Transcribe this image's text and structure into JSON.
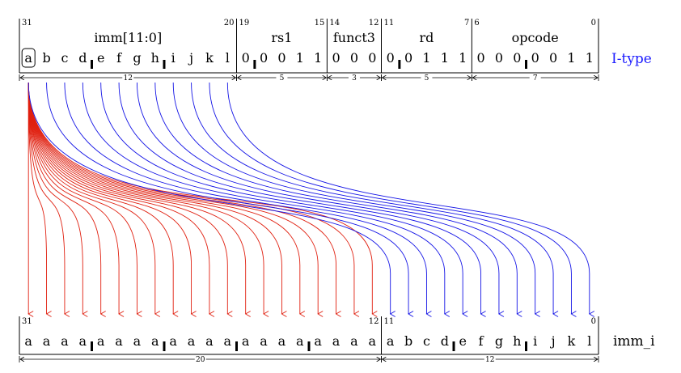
{
  "top": {
    "type_label": "I-type",
    "type_color": "#1a1aff",
    "fields": [
      {
        "name": "imm[11:0]",
        "hi": "31",
        "lo": "20",
        "width": "12",
        "bits": [
          "a",
          "b",
          "c",
          "d",
          "e",
          "f",
          "g",
          "h",
          "i",
          "j",
          "k",
          "l"
        ]
      },
      {
        "name": "rs1",
        "hi": "19",
        "lo": "15",
        "width": "5",
        "bits": [
          "0",
          "0",
          "0",
          "1",
          "1"
        ]
      },
      {
        "name": "funct3",
        "hi": "14",
        "lo": "12",
        "width": "3",
        "bits": [
          "0",
          "0",
          "0"
        ]
      },
      {
        "name": "rd",
        "hi": "11",
        "lo": "7",
        "width": "5",
        "bits": [
          "0",
          "0",
          "1",
          "1",
          "1"
        ]
      },
      {
        "name": "opcode",
        "hi": "6",
        "lo": "0",
        "width": "7",
        "bits": [
          "0",
          "0",
          "0",
          "0",
          "0",
          "1",
          "1"
        ]
      }
    ]
  },
  "bottom": {
    "label": "imm_i",
    "fields": [
      {
        "hi": "31",
        "lo": "12",
        "width": "20",
        "bits": [
          "a",
          "a",
          "a",
          "a",
          "a",
          "a",
          "a",
          "a",
          "a",
          "a",
          "a",
          "a",
          "a",
          "a",
          "a",
          "a",
          "a",
          "a",
          "a",
          "a"
        ]
      },
      {
        "hi": "11",
        "lo": "0",
        "width": "12",
        "bits": [
          "a",
          "b",
          "c",
          "d",
          "e",
          "f",
          "g",
          "h",
          "i",
          "j",
          "k",
          "l"
        ]
      }
    ]
  },
  "arrows": {
    "sign_color": "#e02010",
    "copy_color": "#1414e6"
  }
}
